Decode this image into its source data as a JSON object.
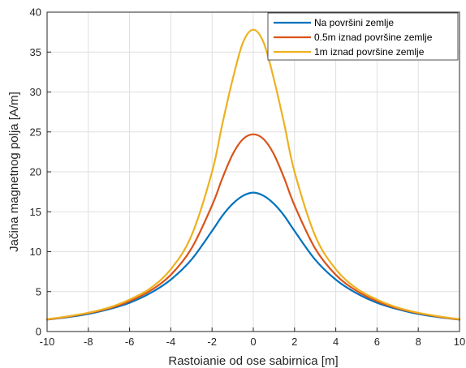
{
  "chart_data": {
    "type": "line",
    "xlabel": "Rastoianie od ose sabirnica [m]",
    "ylabel": "Jačina magnetnog polja [A/m]",
    "xlim": [
      -10,
      10
    ],
    "ylim": [
      0,
      40
    ],
    "xticks": [
      -10,
      -8,
      -6,
      -4,
      -2,
      0,
      2,
      4,
      6,
      8,
      10
    ],
    "yticks": [
      0,
      5,
      10,
      15,
      20,
      25,
      30,
      35,
      40
    ],
    "grid": true,
    "legend_position": "top-right",
    "series": [
      {
        "name": "Na površini zemlje",
        "color": "#0072BD",
        "x": [
          -10,
          -9,
          -8,
          -7,
          -6,
          -5,
          -4,
          -3,
          -2,
          -1.5,
          -1,
          -0.5,
          0,
          0.5,
          1,
          1.5,
          2,
          3,
          4,
          5,
          6,
          7,
          8,
          9,
          10
        ],
        "y": [
          1.5,
          1.8,
          2.2,
          2.8,
          3.6,
          4.8,
          6.5,
          9.0,
          12.6,
          14.5,
          16.0,
          17.0,
          17.4,
          17.0,
          16.0,
          14.5,
          12.6,
          9.0,
          6.5,
          4.8,
          3.6,
          2.8,
          2.2,
          1.8,
          1.5
        ]
      },
      {
        "name": "0.5m iznad površine zemlje",
        "color": "#D95319",
        "x": [
          -10,
          -9,
          -8,
          -7,
          -6,
          -5,
          -4,
          -3,
          -2,
          -1.5,
          -1,
          -0.5,
          0,
          0.5,
          1,
          1.5,
          2,
          3,
          4,
          5,
          6,
          7,
          8,
          9,
          10
        ],
        "y": [
          1.5,
          1.85,
          2.3,
          2.9,
          3.8,
          5.1,
          7.1,
          10.4,
          15.8,
          19.2,
          22.2,
          24.1,
          24.7,
          24.1,
          22.2,
          19.2,
          15.8,
          10.4,
          7.1,
          5.1,
          3.8,
          2.9,
          2.3,
          1.85,
          1.5
        ]
      },
      {
        "name": "1m iznad površine zemlje",
        "color": "#EDB120",
        "x": [
          -10,
          -9,
          -8,
          -7,
          -6,
          -5,
          -4,
          -3,
          -2,
          -1.5,
          -1,
          -0.5,
          0,
          0.5,
          1,
          1.5,
          2,
          3,
          4,
          5,
          6,
          7,
          8,
          9,
          10
        ],
        "y": [
          1.55,
          1.9,
          2.35,
          3.0,
          4.0,
          5.4,
          7.8,
          12.0,
          20.0,
          26.0,
          31.6,
          36.2,
          37.8,
          36.2,
          31.6,
          26.0,
          20.0,
          12.0,
          7.8,
          5.4,
          4.0,
          3.0,
          2.35,
          1.9,
          1.55
        ]
      }
    ]
  }
}
